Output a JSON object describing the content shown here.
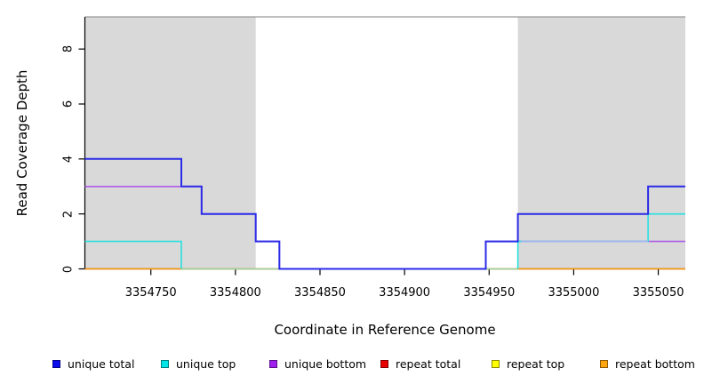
{
  "figure": {
    "xlabel": "Coordinate in Reference Genome",
    "ylabel": "Read Coverage Depth"
  },
  "chart_data": {
    "type": "line",
    "subtype": "step-function-read-coverage",
    "title": "",
    "xlabel": "Coordinate in Reference Genome",
    "ylabel": "Read Coverage Depth",
    "xlim": [
      3354711,
      3355066
    ],
    "ylim": [
      0,
      9.17
    ],
    "x_ticks": [
      3354750,
      3354800,
      3354850,
      3354900,
      3354950,
      3355000,
      3355050
    ],
    "x_tick_labels": [
      "3354750",
      "3354800",
      "3354850",
      "3354900",
      "3354950",
      "3355000",
      "3355050"
    ],
    "y_ticks": [
      0,
      2,
      4,
      6,
      8
    ],
    "y_tick_labels": [
      "0",
      "2",
      "4",
      "6",
      "8"
    ],
    "grid": false,
    "shaded_regions": [
      {
        "name": "repeat-mask-left",
        "from": 3354711,
        "to": 3354812,
        "color": "#D9D9D9"
      },
      {
        "name": "repeat-mask-right",
        "from": 3354967,
        "to": 3355066,
        "color": "#D9D9D9"
      }
    ],
    "series": [
      {
        "name": "unique total",
        "color": "#2B2BE8",
        "points": [
          [
            3354711,
            4
          ],
          [
            3354768,
            4
          ],
          [
            3354768,
            3
          ],
          [
            3354780,
            3
          ],
          [
            3354780,
            2
          ],
          [
            3354812,
            2
          ],
          [
            3354812,
            1
          ],
          [
            3354826,
            1
          ],
          [
            3354826,
            0
          ],
          [
            3354948,
            0
          ],
          [
            3354948,
            1
          ],
          [
            3354967,
            1
          ],
          [
            3354967,
            2
          ],
          [
            3355044,
            2
          ],
          [
            3355044,
            3
          ],
          [
            3355066,
            3
          ]
        ]
      },
      {
        "name": "unique top",
        "color": "#28E0E0",
        "points": [
          [
            3354711,
            1
          ],
          [
            3354768,
            1
          ],
          [
            3354768,
            0
          ],
          [
            3354967,
            0
          ],
          [
            3354967,
            1
          ],
          [
            3355044,
            1
          ],
          [
            3355044,
            2
          ],
          [
            3355066,
            2
          ]
        ]
      },
      {
        "name": "unique bottom",
        "color": "#AE5BE8",
        "points": [
          [
            3354711,
            3
          ],
          [
            3354780,
            3
          ],
          [
            3354780,
            2
          ],
          [
            3354812,
            2
          ],
          [
            3354812,
            1
          ],
          [
            3354826,
            1
          ],
          [
            3354826,
            0
          ],
          [
            3354948,
            0
          ],
          [
            3354948,
            1
          ],
          [
            3355066,
            1
          ]
        ]
      },
      {
        "name": "repeat total",
        "color": "#E80000",
        "points": [
          [
            3354711,
            0
          ],
          [
            3355066,
            0
          ]
        ]
      },
      {
        "name": "repeat top",
        "color": "#FFFF00",
        "points": [
          [
            3354711,
            0
          ],
          [
            3355066,
            0
          ]
        ]
      },
      {
        "name": "repeat bottom",
        "color": "#FF9500",
        "points": [
          [
            3354711,
            0
          ],
          [
            3355066,
            0
          ]
        ]
      }
    ],
    "render_order": [
      {
        "name": "repeat-bottom-line",
        "color": "#FF9500",
        "width": 1.6,
        "points": [
          [
            3354711,
            0
          ],
          [
            3355066,
            0
          ]
        ]
      },
      {
        "name": "overlap-blend-zero-left",
        "color": "#9BD4A9",
        "width": 1.6,
        "points": [
          [
            3354768,
            0
          ],
          [
            3354826,
            0
          ]
        ]
      },
      {
        "name": "overlap-blend-zero-right",
        "color": "#9BD4A9",
        "width": 1.6,
        "points": [
          [
            3354948,
            0
          ],
          [
            3354967,
            0
          ]
        ]
      },
      {
        "name": "unique-bottom-line",
        "color": "#AE5BE8",
        "width": 1.6,
        "points": [
          [
            3354711,
            3
          ],
          [
            3354780,
            3
          ],
          [
            3354780,
            2
          ],
          [
            3354812,
            2
          ],
          [
            3354812,
            1
          ],
          [
            3354826,
            1
          ],
          [
            3354826,
            0
          ],
          [
            3354948,
            0
          ],
          [
            3354948,
            1
          ],
          [
            3355066,
            1
          ]
        ]
      },
      {
        "name": "unique-top-line-left",
        "color": "#28E0E0",
        "width": 1.6,
        "points": [
          [
            3354711,
            1
          ],
          [
            3354768,
            1
          ],
          [
            3354768,
            0
          ]
        ]
      },
      {
        "name": "unique-top-line-right",
        "color": "#28E0E0",
        "width": 1.6,
        "points": [
          [
            3354967,
            0
          ],
          [
            3354967,
            1
          ],
          [
            3355044,
            1
          ],
          [
            3355044,
            2
          ],
          [
            3355066,
            2
          ]
        ]
      },
      {
        "name": "overlap-blend-one",
        "color": "#AAB4F0",
        "width": 1.6,
        "points": [
          [
            3354969,
            1
          ],
          [
            3355044,
            1
          ]
        ]
      },
      {
        "name": "unique-total-line",
        "color": "#2B2BE8",
        "width": 2,
        "points": [
          [
            3354711,
            4
          ],
          [
            3354768,
            4
          ],
          [
            3354768,
            3
          ],
          [
            3354780,
            3
          ],
          [
            3354780,
            2
          ],
          [
            3354812,
            2
          ],
          [
            3354812,
            1
          ],
          [
            3354826,
            1
          ],
          [
            3354826,
            0
          ],
          [
            3354948,
            0
          ],
          [
            3354948,
            1
          ],
          [
            3354967,
            1
          ],
          [
            3354967,
            2
          ],
          [
            3355044,
            2
          ],
          [
            3355044,
            3
          ],
          [
            3355066,
            3
          ]
        ]
      }
    ],
    "legend": {
      "position": "bottom",
      "entries": [
        {
          "label": "unique total",
          "color": "#0B0BEE"
        },
        {
          "label": "unique top",
          "color": "#00E5E5"
        },
        {
          "label": "unique bottom",
          "color": "#A020F0"
        },
        {
          "label": "repeat total",
          "color": "#E80000"
        },
        {
          "label": "repeat top",
          "color": "#FFFF00"
        },
        {
          "label": "repeat bottom",
          "color": "#FFA510"
        }
      ]
    }
  },
  "layout_colors": {
    "mask_fill": "#D9D9D9",
    "plot_top_border": "#999999",
    "axis": "#000000"
  }
}
